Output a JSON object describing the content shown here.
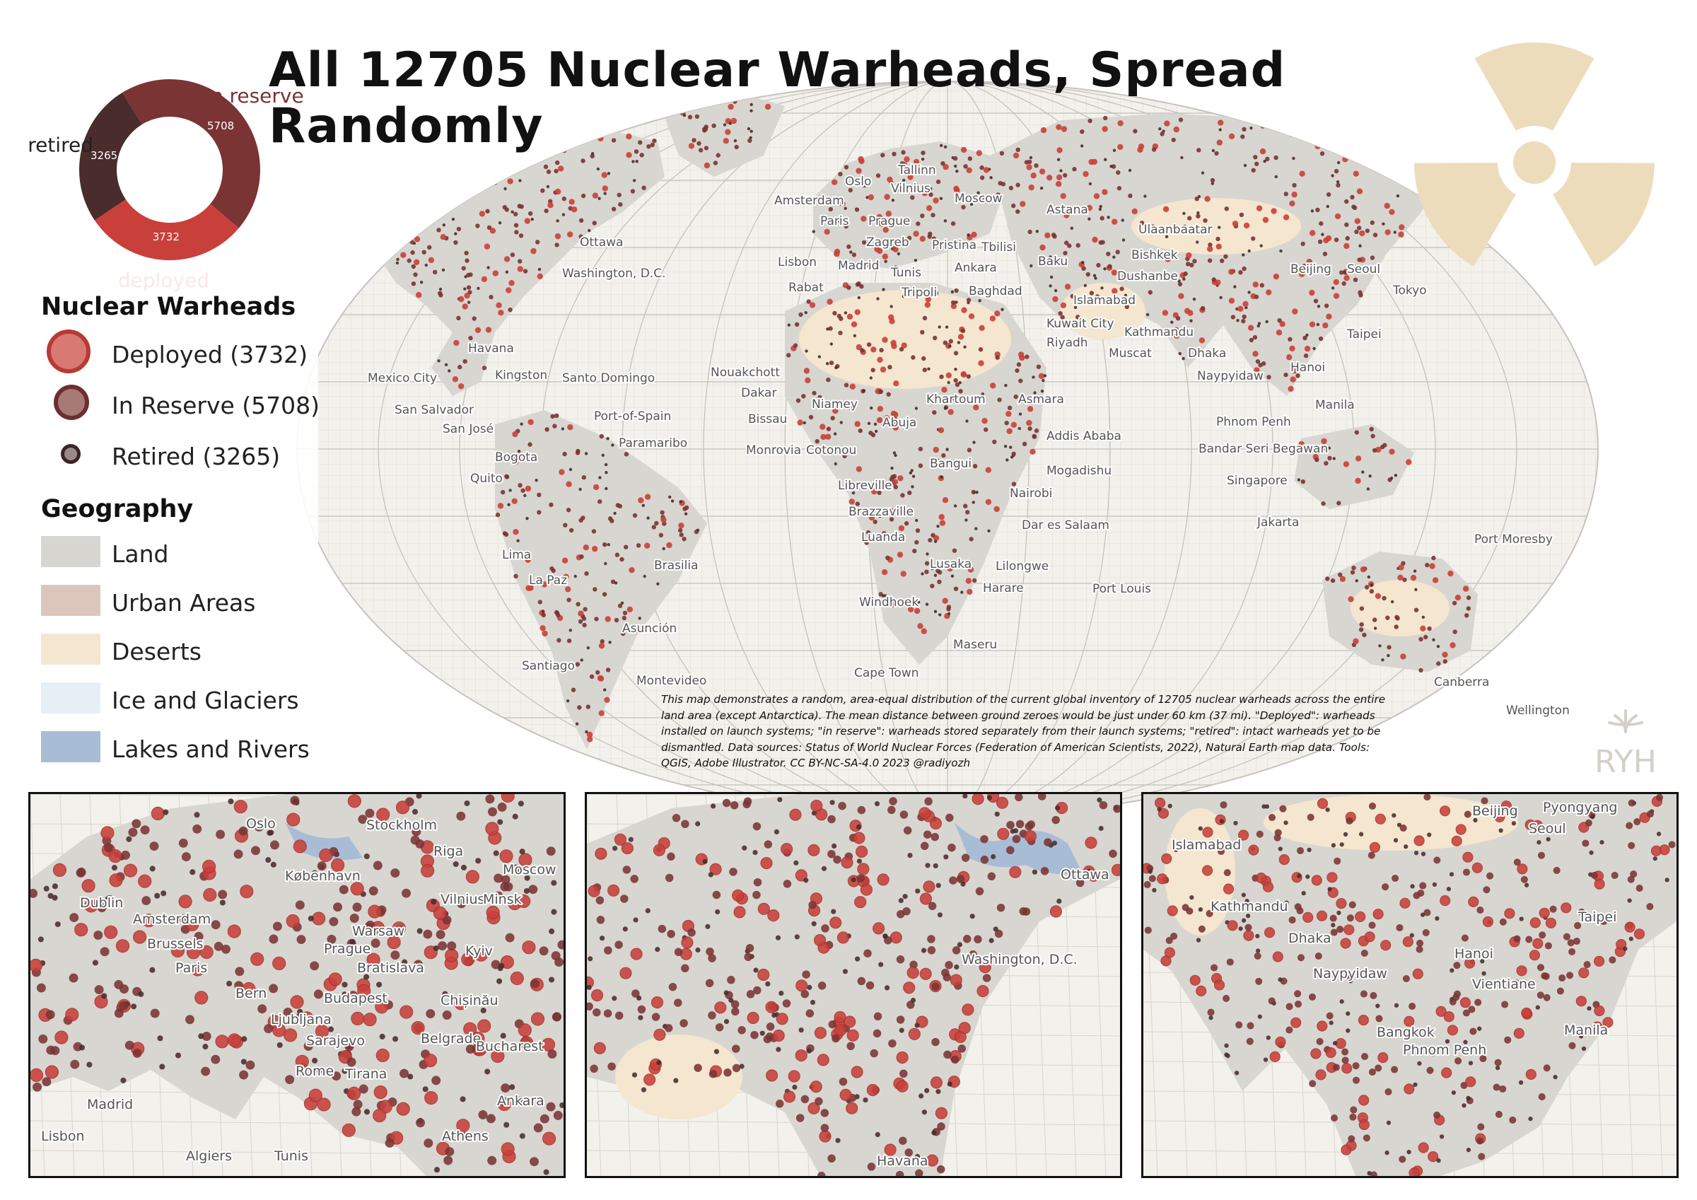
{
  "title": "All 12705 Nuclear Warheads, Spread Randomly",
  "donut": {
    "segments": [
      {
        "key": "in_reserve",
        "label": "in reserve",
        "value": 5708,
        "color": "#7a3434"
      },
      {
        "key": "deployed",
        "label": "deployed",
        "value": 3732,
        "color": "#c9403a"
      },
      {
        "key": "retired",
        "label": "retired",
        "value": 3265,
        "color": "#4a2c2c"
      }
    ]
  },
  "legend": {
    "warheads_heading": "Nuclear Warheads",
    "warheads": [
      {
        "label": "Deployed (3732)",
        "color": "#c9403a"
      },
      {
        "label": "In Reserve (5708)",
        "color": "#7a3434"
      },
      {
        "label": "Retired (3265)",
        "color": "#4a2c2c"
      }
    ],
    "geography_heading": "Geography",
    "geography": [
      {
        "label": "Land",
        "color": "#d8d6d0"
      },
      {
        "label": "Urban Areas",
        "color": "#dcc6bc"
      },
      {
        "label": "Deserts",
        "color": "#f5e6cf"
      },
      {
        "label": "Ice and Glaciers",
        "color": "#e6eef6"
      },
      {
        "label": "Lakes and Rivers",
        "color": "#a9bcd6"
      }
    ]
  },
  "note": "This map demonstrates a random, area-equal distribution of the current global inventory of 12705 nuclear warheads across the entire land area (except Antarctica). The mean distance between ground zeroes would be just under 60 km (37 mi). \"Deployed\": warheads installed on launch systems; \"in reserve\": warheads stored separately from their launch systems; \"retired\": intact warheads yet to be dismantled. Data sources: Status of World Nuclear Forces (Federation of American Scientists, 2022), Natural Earth map data. Tools: QGIS, Adobe Illustrator. CC BY-NC-SA-4.0 2023 @radiyozh",
  "logo_text": "RYH",
  "colors": {
    "deployed": "#c9403a",
    "reserve": "#7a3434",
    "retired": "#4a2c2c",
    "land": "#d8d6d0",
    "desert": "#f5e6cf",
    "ocean": "#f3f1ec",
    "water": "#a9bcd6",
    "radiation": "#eddcbc"
  },
  "world_cities": [
    {
      "name": "Tallinn"
    },
    {
      "name": "Oslo"
    },
    {
      "name": "Vilnius"
    },
    {
      "name": "Moscow"
    },
    {
      "name": "Amsterdam"
    },
    {
      "name": "Astana"
    },
    {
      "name": "Paris"
    },
    {
      "name": "Prague"
    },
    {
      "name": "Ulaanbaatar"
    },
    {
      "name": "Zagreb"
    },
    {
      "name": "Pristina"
    },
    {
      "name": "Tbilisi"
    },
    {
      "name": "Ottawa"
    },
    {
      "name": "Bishkek"
    },
    {
      "name": "Lisbon"
    },
    {
      "name": "Madrid"
    },
    {
      "name": "Tunis"
    },
    {
      "name": "Ankara"
    },
    {
      "name": "Baku"
    },
    {
      "name": "Beijing"
    },
    {
      "name": "Seoul"
    },
    {
      "name": "Washington, D.C."
    },
    {
      "name": "Dushanbe"
    },
    {
      "name": "Rabat"
    },
    {
      "name": "Tripoli"
    },
    {
      "name": "Baghdad"
    },
    {
      "name": "Tokyo"
    },
    {
      "name": "Islamabad"
    },
    {
      "name": "Kuwait City"
    },
    {
      "name": "Kathmandu"
    },
    {
      "name": "Taipei"
    },
    {
      "name": "Riyadh"
    },
    {
      "name": "Havana"
    },
    {
      "name": "Muscat"
    },
    {
      "name": "Dhaka"
    },
    {
      "name": "Nouakchott"
    },
    {
      "name": "Hanoi"
    },
    {
      "name": "Mexico City"
    },
    {
      "name": "Kingston"
    },
    {
      "name": "Santo Domingo"
    },
    {
      "name": "Naypyidaw"
    },
    {
      "name": "Dakar"
    },
    {
      "name": "Khartoum"
    },
    {
      "name": "Asmara"
    },
    {
      "name": "Niamey"
    },
    {
      "name": "Manila"
    },
    {
      "name": "San Salvador"
    },
    {
      "name": "Port-of-Spain"
    },
    {
      "name": "Bissau"
    },
    {
      "name": "Abuja"
    },
    {
      "name": "Phnom Penh"
    },
    {
      "name": "San José"
    },
    {
      "name": "Addis Ababa"
    },
    {
      "name": "Paramaribo"
    },
    {
      "name": "Monrovia"
    },
    {
      "name": "Cotonou"
    },
    {
      "name": "Bandar Seri Begawan"
    },
    {
      "name": "Bogota"
    },
    {
      "name": "Bangui"
    },
    {
      "name": "Mogadishu"
    },
    {
      "name": "Quito"
    },
    {
      "name": "Libreville"
    },
    {
      "name": "Singapore"
    },
    {
      "name": "Nairobi"
    },
    {
      "name": "Brazzaville"
    },
    {
      "name": "Jakarta"
    },
    {
      "name": "Dar es Salaam"
    },
    {
      "name": "Luanda"
    },
    {
      "name": "Port Moresby"
    },
    {
      "name": "Lima"
    },
    {
      "name": "Brasilia"
    },
    {
      "name": "Lusaka"
    },
    {
      "name": "Lilongwe"
    },
    {
      "name": "La Paz"
    },
    {
      "name": "Harare"
    },
    {
      "name": "Port Louis"
    },
    {
      "name": "Windhoek"
    },
    {
      "name": "Asunción"
    },
    {
      "name": "Maseru"
    },
    {
      "name": "Santiago"
    },
    {
      "name": "Cape Town"
    },
    {
      "name": "Montevideo"
    },
    {
      "name": "Canberra"
    },
    {
      "name": "Wellington"
    }
  ],
  "insets": [
    {
      "region": "Europe",
      "cities": [
        {
          "name": "Oslo"
        },
        {
          "name": "Stockholm"
        },
        {
          "name": "Riga"
        },
        {
          "name": "København"
        },
        {
          "name": "Moscow"
        },
        {
          "name": "Dublin"
        },
        {
          "name": "Vilnius"
        },
        {
          "name": "Minsk"
        },
        {
          "name": "Amsterdam"
        },
        {
          "name": "Warsaw"
        },
        {
          "name": "Brussels"
        },
        {
          "name": "Prague"
        },
        {
          "name": "Kyiv"
        },
        {
          "name": "Paris"
        },
        {
          "name": "Bratislava"
        },
        {
          "name": "Bern"
        },
        {
          "name": "Budapest"
        },
        {
          "name": "Chișinău"
        },
        {
          "name": "Ljubljana"
        },
        {
          "name": "Sarajevo"
        },
        {
          "name": "Belgrade"
        },
        {
          "name": "Bucharest"
        },
        {
          "name": "Rome"
        },
        {
          "name": "Tirana"
        },
        {
          "name": "Madrid"
        },
        {
          "name": "Ankara"
        },
        {
          "name": "Lisbon"
        },
        {
          "name": "Athens"
        },
        {
          "name": "Algiers"
        },
        {
          "name": "Tunis"
        }
      ]
    },
    {
      "region": "North America",
      "cities": [
        {
          "name": "Ottawa"
        },
        {
          "name": "Washington, D.C."
        },
        {
          "name": "Havana"
        }
      ]
    },
    {
      "region": "Asia",
      "cities": [
        {
          "name": "Beijing"
        },
        {
          "name": "Pyongyang"
        },
        {
          "name": "Seoul"
        },
        {
          "name": "Islamabad"
        },
        {
          "name": "Kathmandu"
        },
        {
          "name": "Taipei"
        },
        {
          "name": "Dhaka"
        },
        {
          "name": "Naypyidaw"
        },
        {
          "name": "Hanoi"
        },
        {
          "name": "Vientiane"
        },
        {
          "name": "Manila"
        },
        {
          "name": "Bangkok"
        },
        {
          "name": "Phnom Penh"
        }
      ]
    }
  ]
}
